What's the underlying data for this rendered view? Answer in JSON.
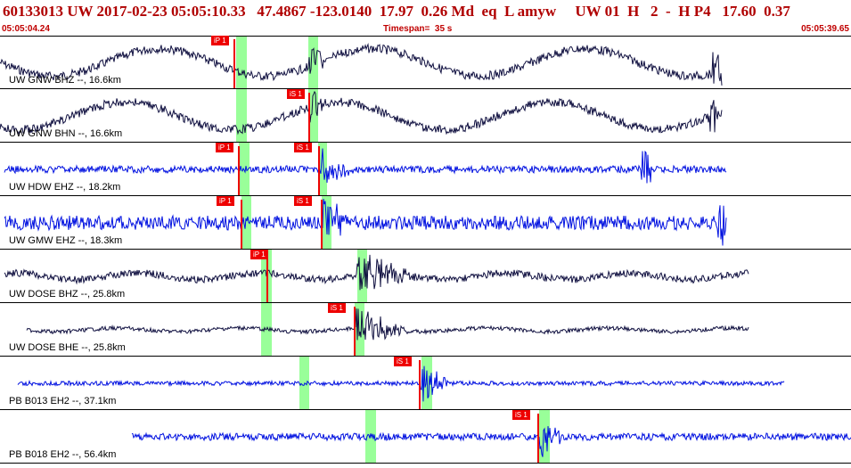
{
  "header": {
    "title": "60133013 UW 2017-02-23 05:05:10.33   47.4867 -123.0140  17.97  0.26 Md  eq  L amyw     UW 01  H   2  -  H P4   17.60  0.37"
  },
  "subheader": {
    "start_time": "05:05:04.24",
    "timespan": "Timespan=  35 s",
    "end_time": "05:05:39.65"
  },
  "colors": {
    "trace_blue": "#0010e0",
    "trace_navy": "#101040",
    "pick_red": "#ee0000",
    "window_green": "#99ff99",
    "header_red": "#b00000"
  },
  "panels": [
    {
      "label": "UW GNW BHZ --, 16.6km",
      "color": "navy",
      "picks": [
        {
          "text": "iP 1"
        }
      ]
    },
    {
      "label": "UW GNW BHN --, 16.6km",
      "color": "navy",
      "picks": [
        {
          "text": "iS 1"
        }
      ]
    },
    {
      "label": "UW HDW EHZ --, 18.2km",
      "color": "blue",
      "picks": [
        {
          "text": "iP 1"
        },
        {
          "text": "iS 1"
        }
      ]
    },
    {
      "label": "UW GMW EHZ --, 18.3km",
      "color": "blue",
      "picks": [
        {
          "text": "iP 1"
        },
        {
          "text": "iS 1"
        }
      ]
    },
    {
      "label": "UW DOSE BHZ --, 25.8km",
      "color": "navy",
      "picks": [
        {
          "text": "iP 1"
        }
      ]
    },
    {
      "label": "UW DOSE BHE --, 25.8km",
      "color": "navy",
      "picks": [
        {
          "text": "iS 1"
        }
      ]
    },
    {
      "label": "PB B013 EH2 --, 37.1km",
      "color": "blue",
      "picks": [
        {
          "text": "iS 1"
        }
      ]
    },
    {
      "label": "PB B018 EH2 --, 56.4km",
      "color": "blue",
      "picks": [
        {
          "text": "iS 1"
        }
      ]
    }
  ]
}
